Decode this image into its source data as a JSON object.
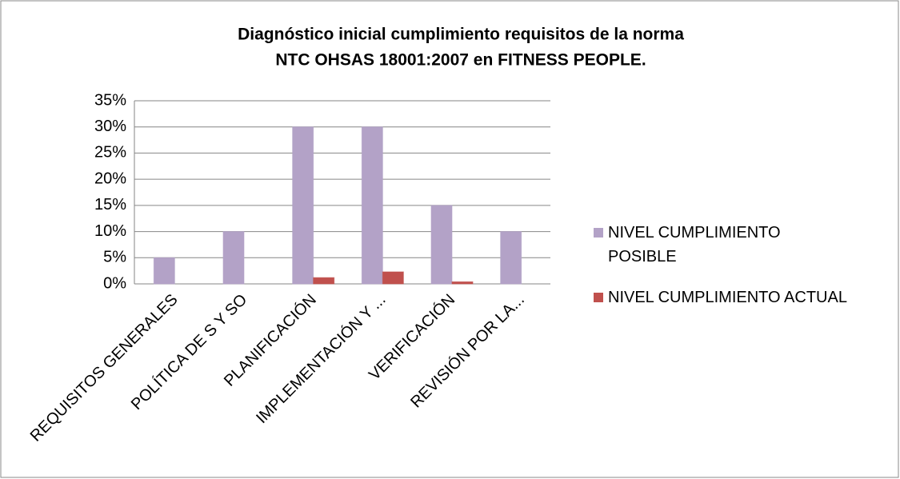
{
  "chart_data": {
    "type": "bar",
    "title": [
      "Diagnóstico inicial cumplimiento requisitos de la norma",
      "NTC OHSAS 18001:2007 en FITNESS PEOPLE."
    ],
    "categories": [
      "REQUISITOS GENERALES",
      "POLÍTICA DE S Y SO",
      "PLANIFICACIÓN",
      "IMPLEMENTACIÓN Y ...",
      "VERIFICACIÓN",
      "REVISIÓN POR LA..."
    ],
    "series": [
      {
        "name": "NIVEL CUMPLIMIENTO POSIBLE",
        "color": "#b3a2c7",
        "values": [
          5,
          10,
          30,
          30,
          15,
          10
        ]
      },
      {
        "name": "NIVEL CUMPLIMIENTO ACTUAL",
        "color": "#c0504d",
        "values": [
          0,
          0,
          1.2,
          2.3,
          0.4,
          0
        ]
      }
    ],
    "ylim": [
      0,
      35
    ],
    "yticks": [
      {
        "value": 0,
        "label": "0%"
      },
      {
        "value": 5,
        "label": "5%"
      },
      {
        "value": 10,
        "label": "10%"
      },
      {
        "value": 15,
        "label": "15%"
      },
      {
        "value": 20,
        "label": "20%"
      },
      {
        "value": 25,
        "label": "25%"
      },
      {
        "value": 30,
        "label": "30%"
      },
      {
        "value": 35,
        "label": "35%"
      }
    ],
    "grid": true,
    "legend": "right"
  }
}
